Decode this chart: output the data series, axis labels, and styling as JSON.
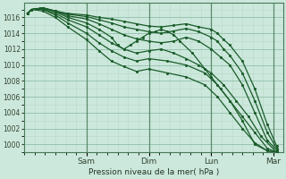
{
  "bg_color": "#cce8dc",
  "plot_bg_color": "#cce8dc",
  "grid_major_color": "#99c4b0",
  "grid_minor_color": "#b8d8c8",
  "line_color": "#1a5c2a",
  "title": "Pression niveau de la mer( hPa )",
  "ylabel_ticks": [
    1000,
    1002,
    1004,
    1006,
    1008,
    1010,
    1012,
    1014,
    1016
  ],
  "x_tick_labels": [
    "Sam",
    "Dim",
    "Lun",
    "Mar"
  ],
  "x_tick_positions": [
    1.0,
    2.0,
    3.0,
    4.0
  ],
  "ylim": [
    999.0,
    1017.8
  ],
  "xlim": [
    0.0,
    4.15
  ],
  "lines": [
    {
      "x": [
        0.05,
        0.12,
        0.3,
        0.5,
        0.7,
        1.0,
        1.2,
        1.4,
        1.6,
        1.8,
        2.0,
        2.2,
        2.4,
        2.6,
        2.8,
        3.0,
        3.1,
        3.2,
        3.3,
        3.5,
        3.7,
        3.9,
        4.05
      ],
      "y": [
        1016.5,
        1017.0,
        1017.2,
        1016.8,
        1016.5,
        1016.3,
        1016.0,
        1015.8,
        1015.5,
        1015.2,
        1014.9,
        1014.8,
        1015.0,
        1015.2,
        1014.8,
        1014.5,
        1014.0,
        1013.2,
        1012.5,
        1010.5,
        1007.0,
        1002.5,
        999.8
      ]
    },
    {
      "x": [
        0.05,
        0.12,
        0.3,
        0.5,
        0.7,
        1.0,
        1.2,
        1.4,
        1.6,
        1.8,
        2.0,
        2.2,
        2.4,
        2.6,
        2.8,
        3.0,
        3.1,
        3.2,
        3.3,
        3.5,
        3.7,
        3.9,
        4.05
      ],
      "y": [
        1016.5,
        1017.0,
        1017.2,
        1016.8,
        1016.4,
        1016.1,
        1015.7,
        1015.3,
        1014.8,
        1014.5,
        1014.2,
        1014.0,
        1014.3,
        1014.6,
        1014.2,
        1013.5,
        1013.0,
        1012.0,
        1011.2,
        1009.0,
        1005.5,
        1001.5,
        999.5
      ]
    },
    {
      "x": [
        0.05,
        0.12,
        0.3,
        0.5,
        0.7,
        1.0,
        1.2,
        1.4,
        1.6,
        1.8,
        2.0,
        2.2,
        2.4,
        2.6,
        2.8,
        3.0,
        3.15,
        3.3,
        3.5,
        3.7,
        3.9,
        4.05
      ],
      "y": [
        1016.5,
        1017.0,
        1017.2,
        1016.8,
        1016.2,
        1015.8,
        1015.2,
        1014.5,
        1013.8,
        1013.3,
        1013.0,
        1012.8,
        1013.0,
        1013.5,
        1013.0,
        1012.0,
        1011.0,
        1010.0,
        1007.5,
        1004.0,
        1000.5,
        999.3
      ]
    },
    {
      "x": [
        0.05,
        0.12,
        0.3,
        0.5,
        0.7,
        1.0,
        1.2,
        1.4,
        1.5,
        1.6,
        1.7,
        1.8,
        1.9,
        2.0,
        2.1,
        2.2,
        2.3,
        2.4,
        2.5,
        2.7,
        2.9,
        3.0,
        3.15,
        3.3,
        3.5,
        3.7,
        3.9,
        4.05
      ],
      "y": [
        1016.5,
        1017.0,
        1017.2,
        1016.7,
        1016.0,
        1015.3,
        1014.5,
        1013.5,
        1012.5,
        1012.0,
        1012.5,
        1013.0,
        1013.5,
        1014.0,
        1014.2,
        1014.5,
        1014.2,
        1013.8,
        1013.0,
        1011.5,
        1009.5,
        1008.5,
        1007.0,
        1005.5,
        1003.0,
        1000.0,
        999.2,
        999.0
      ]
    },
    {
      "x": [
        0.05,
        0.12,
        0.3,
        0.5,
        0.7,
        1.0,
        1.2,
        1.4,
        1.6,
        1.8,
        2.0,
        2.2,
        2.4,
        2.6,
        2.8,
        3.0,
        3.2,
        3.4,
        3.6,
        3.8,
        4.05
      ],
      "y": [
        1016.5,
        1017.0,
        1017.1,
        1016.5,
        1015.7,
        1014.8,
        1013.8,
        1012.8,
        1012.0,
        1011.5,
        1011.8,
        1012.0,
        1011.5,
        1010.8,
        1010.0,
        1009.0,
        1007.5,
        1005.5,
        1003.5,
        1001.0,
        999.0
      ]
    },
    {
      "x": [
        0.05,
        0.12,
        0.3,
        0.5,
        0.7,
        1.0,
        1.2,
        1.4,
        1.6,
        1.8,
        2.0,
        2.3,
        2.6,
        2.9,
        3.1,
        3.3,
        3.5,
        3.7,
        3.9,
        4.05
      ],
      "y": [
        1016.5,
        1017.0,
        1017.0,
        1016.3,
        1015.3,
        1014.0,
        1012.8,
        1011.8,
        1011.0,
        1010.5,
        1010.8,
        1010.5,
        1010.0,
        1009.0,
        1007.5,
        1005.5,
        1003.5,
        1001.5,
        999.5,
        999.0
      ]
    },
    {
      "x": [
        0.05,
        0.12,
        0.3,
        0.5,
        0.7,
        1.0,
        1.2,
        1.4,
        1.6,
        1.8,
        2.0,
        2.3,
        2.6,
        2.9,
        3.1,
        3.3,
        3.5,
        3.7,
        3.9,
        4.05
      ],
      "y": [
        1016.5,
        1017.0,
        1016.8,
        1016.0,
        1014.8,
        1013.2,
        1011.8,
        1010.5,
        1009.8,
        1009.2,
        1009.5,
        1009.0,
        1008.5,
        1007.5,
        1006.0,
        1004.0,
        1002.0,
        1000.2,
        999.2,
        999.0
      ]
    }
  ]
}
